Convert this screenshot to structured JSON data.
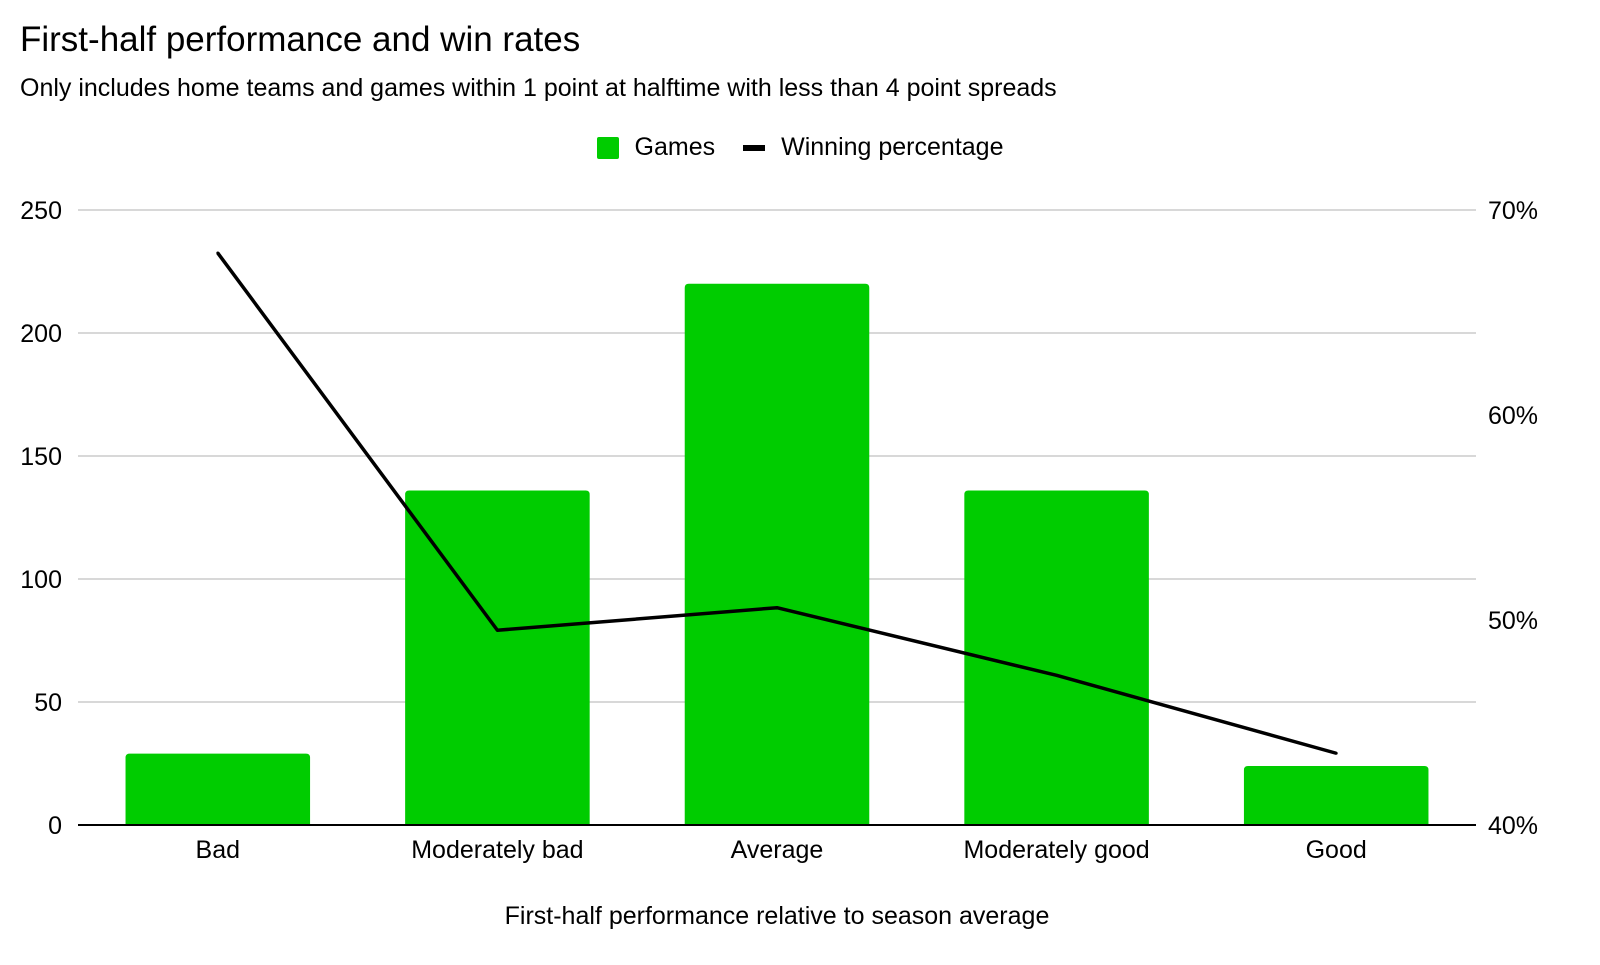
{
  "chart_data": {
    "type": "bar",
    "title": "First-half performance and win rates",
    "subtitle": "Only includes home teams and games within 1 point at halftime with less than 4 point spreads",
    "xlabel": "First-half performance relative to season average",
    "ylabel": "",
    "y2label": "",
    "categories": [
      "Bad",
      "Moderately bad",
      "Average",
      "Moderately good",
      "Good"
    ],
    "series": [
      {
        "name": "Games",
        "type": "bar",
        "axis": "left",
        "color": "#00cc00",
        "values": [
          29,
          136,
          220,
          136,
          24
        ]
      },
      {
        "name": "Winning percentage",
        "type": "line",
        "axis": "right",
        "color": "#000000",
        "values": [
          67.9,
          49.5,
          50.6,
          47.3,
          43.5
        ]
      }
    ],
    "ylim": [
      0,
      250
    ],
    "yticks": [
      "0",
      "50",
      "100",
      "150",
      "200",
      "250"
    ],
    "y2lim": [
      40,
      70
    ],
    "y2ticks": [
      "40%",
      "50%",
      "60%",
      "70%"
    ],
    "grid": true,
    "legend_position": "top-center"
  }
}
